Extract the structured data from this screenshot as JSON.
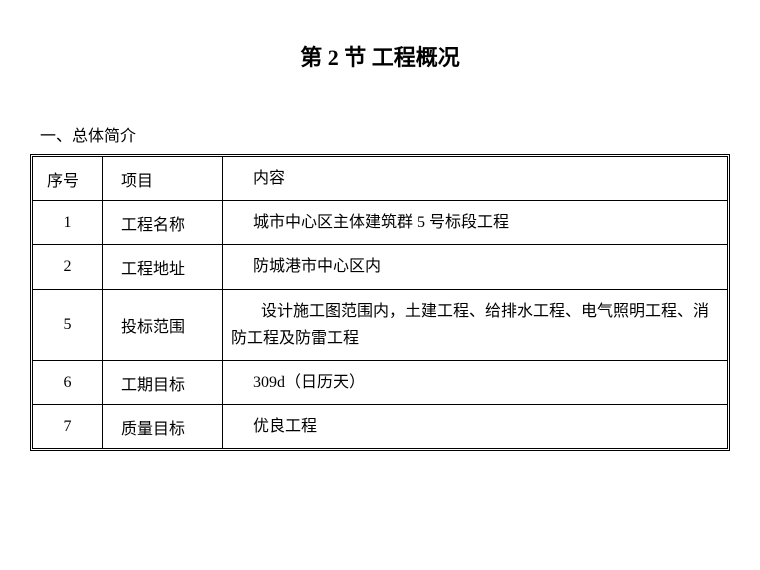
{
  "title": "第 2 节 工程概况",
  "subtitle": "一、总体简介",
  "table": {
    "headers": {
      "seq": "序号",
      "item": "项目",
      "content": "内容"
    },
    "rows": [
      {
        "seq": "1",
        "item": "工程名称",
        "content": "城市中心区主体建筑群 5 号标段工程"
      },
      {
        "seq": "2",
        "item": "工程地址",
        "content": "防城港市中心区内"
      },
      {
        "seq": "5",
        "item": "投标范围",
        "content": "设计施工图范围内，土建工程、给排水工程、电气照明工程、消防工程及防雷工程"
      },
      {
        "seq": "6",
        "item": "工期目标",
        "content": "309d（日历天）"
      },
      {
        "seq": "7",
        "item": "质量目标",
        "content": "优良工程"
      }
    ]
  },
  "styling": {
    "background_color": "#ffffff",
    "text_color": "#000000",
    "border_color": "#000000",
    "title_fontsize": 22,
    "body_fontsize": 16,
    "font_family": "SimSun"
  }
}
